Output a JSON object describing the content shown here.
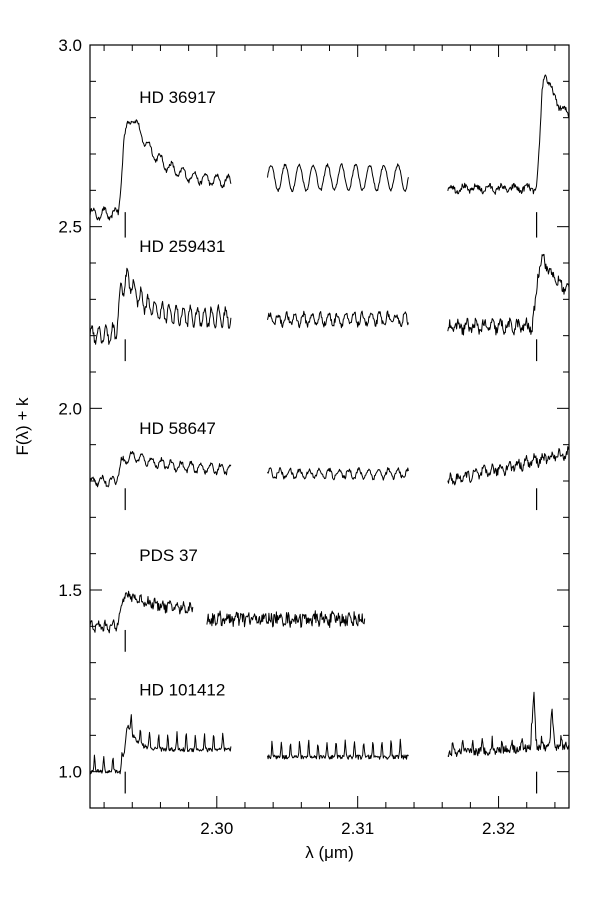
{
  "chart_data": {
    "type": "line",
    "title": "",
    "xlabel": "λ (μm)",
    "ylabel": "F(λ) + k",
    "xlim": [
      2.291,
      2.325
    ],
    "ylim": [
      0.9,
      3.0
    ],
    "x_ticks": [
      {
        "value": 2.3,
        "label": "2.30"
      },
      {
        "value": 2.31,
        "label": "2.31"
      },
      {
        "value": 2.32,
        "label": "2.32"
      }
    ],
    "y_ticks": [
      {
        "value": 1.0,
        "label": "1.0"
      },
      {
        "value": 1.5,
        "label": "1.5"
      },
      {
        "value": 2.0,
        "label": "2.0"
      },
      {
        "value": 2.5,
        "label": "2.5"
      },
      {
        "value": 3.0,
        "label": "3.0"
      }
    ],
    "band_head_markers": [
      2.2935,
      2.3227
    ],
    "series": [
      {
        "name": "HD 36917",
        "label_x": 2.2945,
        "label_y": 2.84,
        "marker_y": [
          2.54,
          2.47
        ],
        "segments": [
          {
            "x_start": 2.291,
            "x_end": 2.301,
            "baseline": 2.535,
            "rise_at": 2.293,
            "rise_height": 0.16,
            "peak_at": 2.294,
            "peak_height": 0.19,
            "decay": 0.0018,
            "tail_level": 2.62,
            "wiggle": 0.015,
            "wiggle_period": 0.0008,
            "noise": 0.006
          },
          {
            "x_start": 2.3036,
            "x_end": 2.3136,
            "baseline": 2.635,
            "wiggle": 0.035,
            "wiggle_period": 0.001,
            "noise": 0.004
          },
          {
            "x_start": 2.3164,
            "x_end": 2.325,
            "baseline": 2.605,
            "rise_at": 2.3227,
            "rise_height": 0.18,
            "peak_at": 2.3233,
            "peak_height": 0.15,
            "decay": 0.001,
            "tail_level": 2.78,
            "wiggle": 0.008,
            "wiggle_period": 0.0009,
            "noise": 0.008
          }
        ]
      },
      {
        "name": "HD 259431",
        "label_x": 2.2945,
        "label_y": 2.43,
        "marker_y": [
          2.19,
          2.13
        ],
        "segments": [
          {
            "x_start": 2.291,
            "x_end": 2.301,
            "baseline": 2.205,
            "rise_at": 2.2928,
            "rise_height": 0.1,
            "peak_at": 2.2937,
            "peak_height": 0.11,
            "decay": 0.0012,
            "tail_level": 2.25,
            "wiggle": 0.025,
            "wiggle_period": 0.0005,
            "noise": 0.01
          },
          {
            "x_start": 2.3036,
            "x_end": 2.3136,
            "baseline": 2.245,
            "wiggle": 0.015,
            "wiggle_period": 0.0006,
            "noise": 0.009
          },
          {
            "x_start": 2.3164,
            "x_end": 2.325,
            "baseline": 2.225,
            "rise_at": 2.3224,
            "rise_height": 0.09,
            "peak_at": 2.3231,
            "peak_height": 0.12,
            "decay": 0.0012,
            "tail_level": 2.3,
            "wiggle": 0.012,
            "wiggle_period": 0.0006,
            "noise": 0.014
          }
        ]
      },
      {
        "name": "HD 58647",
        "label_x": 2.2945,
        "label_y": 1.93,
        "marker_y": [
          1.78,
          1.72
        ],
        "segments": [
          {
            "x_start": 2.291,
            "x_end": 2.301,
            "baseline": 1.8,
            "rise_at": 2.2928,
            "rise_height": 0.04,
            "peak_at": 2.294,
            "peak_height": 0.04,
            "decay": 0.0025,
            "tail_level": 1.83,
            "wiggle": 0.012,
            "wiggle_period": 0.0007,
            "noise": 0.006
          },
          {
            "x_start": 2.3036,
            "x_end": 2.3136,
            "baseline": 1.82,
            "wiggle": 0.012,
            "wiggle_period": 0.0007,
            "noise": 0.006
          },
          {
            "x_start": 2.3164,
            "x_end": 2.325,
            "baseline": 1.8,
            "slope": 9.0,
            "wiggle": 0.01,
            "wiggle_period": 0.0006,
            "noise": 0.012
          }
        ]
      },
      {
        "name": "PDS 37",
        "label_x": 2.2945,
        "label_y": 1.58,
        "marker_y": [
          1.39,
          1.33
        ],
        "segments": [
          {
            "x_start": 2.291,
            "x_end": 2.2983,
            "baseline": 1.4,
            "rise_at": 2.2929,
            "rise_height": 0.07,
            "peak_at": 2.2938,
            "peak_height": 0.04,
            "decay": 0.002,
            "tail_level": 1.445,
            "wiggle": 0.008,
            "wiggle_period": 0.0005,
            "noise": 0.012
          },
          {
            "x_start": 2.2993,
            "x_end": 2.3105,
            "baseline": 1.42,
            "wiggle": 0.006,
            "wiggle_period": 0.0004,
            "noise": 0.018
          }
        ]
      },
      {
        "name": "HD 101412",
        "label_x": 2.2945,
        "label_y": 1.21,
        "marker_y": [
          1.0,
          0.94
        ],
        "segments": [
          {
            "x_start": 2.291,
            "x_end": 2.301,
            "baseline": 1.0,
            "rise_at": 2.2932,
            "rise_height": 0.06,
            "peak_at": 2.2937,
            "peak_height": 0.07,
            "decay": 0.0006,
            "tail_level": 1.06,
            "spikes": 0.045,
            "spike_period": 0.00065,
            "noise": 0.006
          },
          {
            "x_start": 2.3036,
            "x_end": 2.3136,
            "baseline": 1.04,
            "spikes": 0.045,
            "spike_period": 0.00065,
            "noise": 0.006
          },
          {
            "x_start": 2.3164,
            "x_end": 2.325,
            "baseline": 1.05,
            "slope": 2.5,
            "spikes": 0.03,
            "spike_period": 0.0007,
            "noise": 0.012,
            "extra_peaks": [
              {
                "x": 2.3225,
                "h": 0.15
              },
              {
                "x": 2.3238,
                "h": 0.08
              }
            ]
          }
        ]
      }
    ]
  }
}
